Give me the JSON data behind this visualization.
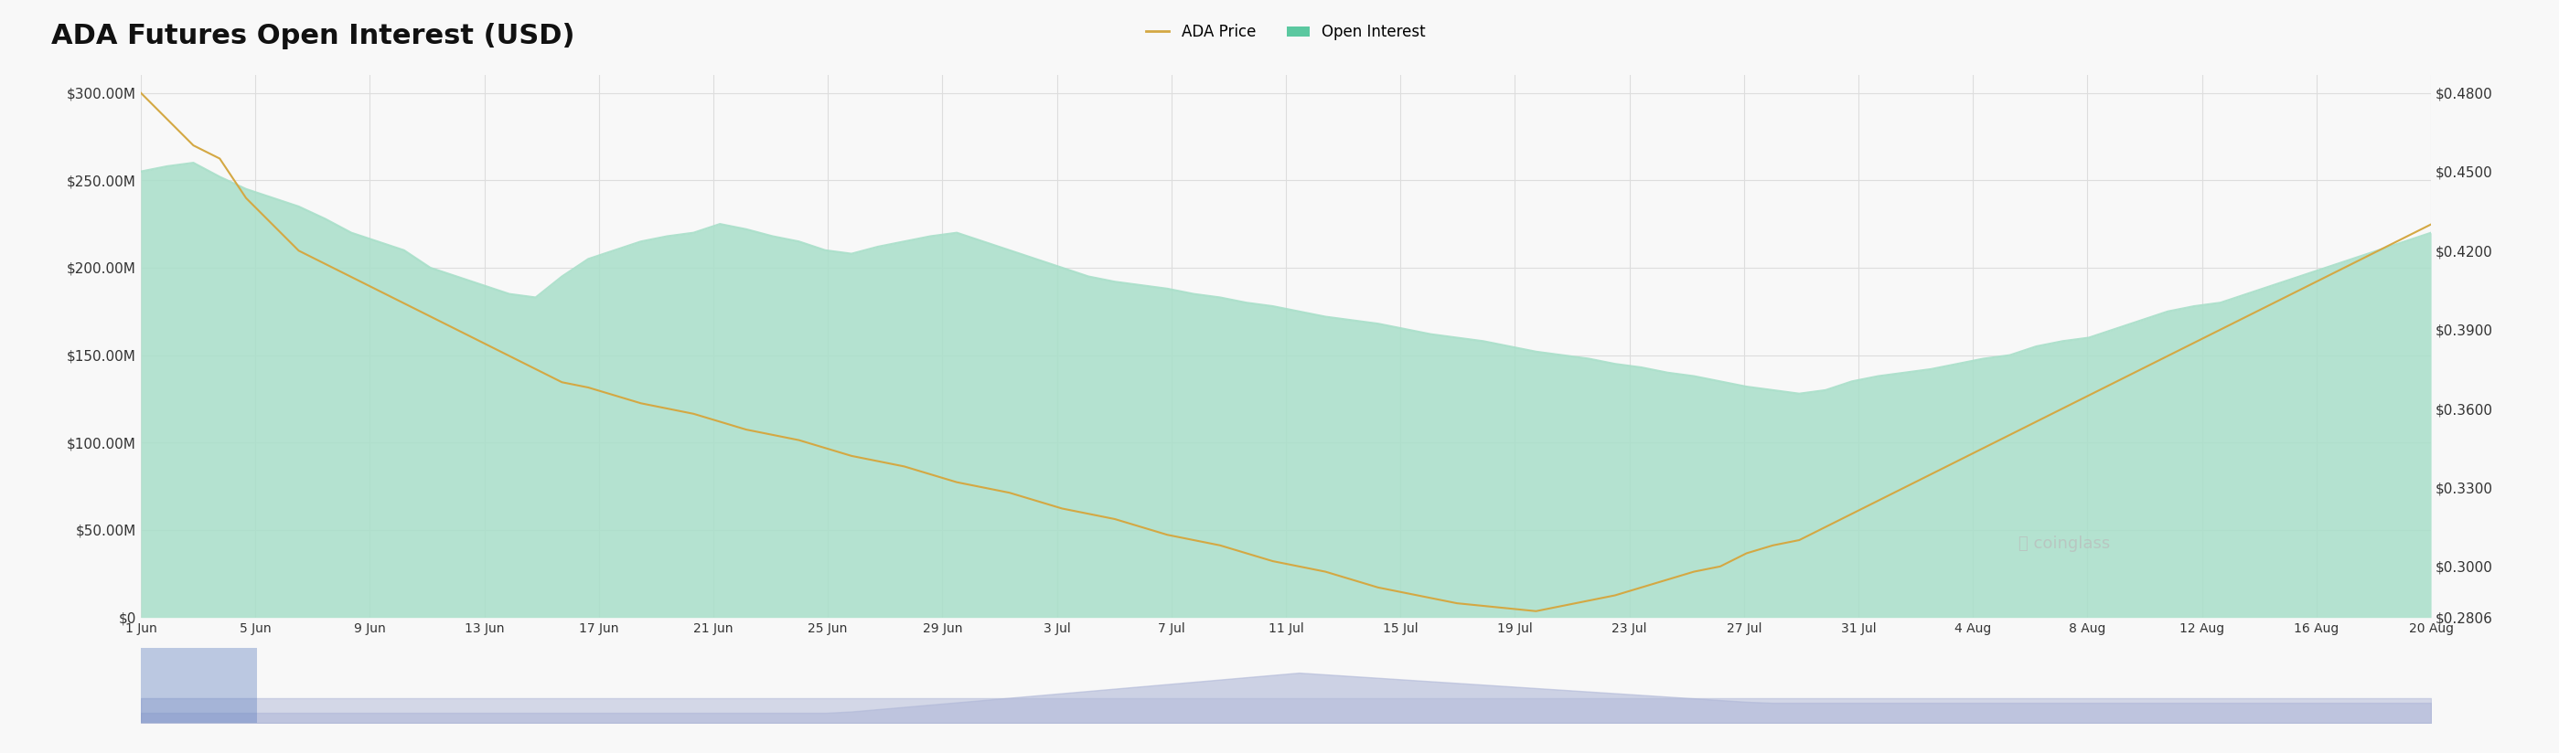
{
  "title": "ADA Futures Open Interest (USD)",
  "background_color": "#f8f8f8",
  "legend_labels": [
    "ADA Price",
    "Open Interest"
  ],
  "legend_colors": [
    "#d4a843",
    "#5bc8a0"
  ],
  "left_yticks": [
    0,
    50,
    100,
    150,
    200,
    250,
    300
  ],
  "left_yticklabels": [
    "$0",
    "$50.00M",
    "$100.00M",
    "$150.00M",
    "$200.00M",
    "$250.00M",
    "$300.00M"
  ],
  "right_yticks": [
    0.2806,
    0.3,
    0.33,
    0.36,
    0.39,
    0.42,
    0.45,
    0.48
  ],
  "right_yticklabels": [
    "$0.2806",
    "$0.3000",
    "$0.3300",
    "$0.3600",
    "$0.3900",
    "$0.4200",
    "$0.4500",
    "$0.4800"
  ],
  "xtick_labels": [
    "1 Jun",
    "5 Jun",
    "9 Jun",
    "13 Jun",
    "17 Jun",
    "21 Jun",
    "25 Jun",
    "29 Jun",
    "3 Jul",
    "7 Jul",
    "11 Jul",
    "15 Jul",
    "19 Jul",
    "23 Jul",
    "27 Jul",
    "31 Jul",
    "4 Aug",
    "8 Aug",
    "12 Aug",
    "16 Aug",
    "20 Aug"
  ],
  "open_interest": [
    255,
    258,
    260,
    252,
    245,
    240,
    235,
    228,
    220,
    215,
    210,
    200,
    195,
    190,
    185,
    183,
    195,
    205,
    210,
    215,
    218,
    220,
    225,
    222,
    218,
    215,
    210,
    208,
    212,
    215,
    218,
    220,
    215,
    210,
    205,
    200,
    195,
    192,
    190,
    188,
    185,
    183,
    180,
    178,
    175,
    172,
    170,
    168,
    165,
    162,
    160,
    158,
    155,
    152,
    150,
    148,
    145,
    143,
    140,
    138,
    135,
    132,
    130,
    128,
    130,
    135,
    138,
    140,
    142,
    145,
    148,
    150,
    155,
    158,
    160,
    165,
    170,
    175,
    178,
    180,
    185,
    190,
    195,
    200,
    205,
    210,
    215,
    220
  ],
  "ada_price": [
    0.48,
    0.47,
    0.46,
    0.455,
    0.44,
    0.43,
    0.42,
    0.415,
    0.41,
    0.405,
    0.4,
    0.395,
    0.39,
    0.385,
    0.38,
    0.375,
    0.37,
    0.368,
    0.365,
    0.362,
    0.36,
    0.358,
    0.355,
    0.352,
    0.35,
    0.348,
    0.345,
    0.342,
    0.34,
    0.338,
    0.335,
    0.332,
    0.33,
    0.328,
    0.325,
    0.322,
    0.32,
    0.318,
    0.315,
    0.312,
    0.31,
    0.308,
    0.305,
    0.302,
    0.3,
    0.298,
    0.295,
    0.292,
    0.29,
    0.288,
    0.286,
    0.285,
    0.284,
    0.283,
    0.285,
    0.287,
    0.289,
    0.292,
    0.295,
    0.298,
    0.3,
    0.305,
    0.308,
    0.31,
    0.315,
    0.32,
    0.325,
    0.33,
    0.335,
    0.34,
    0.345,
    0.35,
    0.355,
    0.36,
    0.365,
    0.37,
    0.375,
    0.38,
    0.385,
    0.39,
    0.395,
    0.4,
    0.405,
    0.41,
    0.415,
    0.42,
    0.425,
    0.43
  ],
  "oi_color_top": "#a8dfc9",
  "oi_color_bottom": "#e8f8f2",
  "price_line_color": "#d4a843",
  "grid_color": "#dddddd",
  "mini_color": "#b0b8d8",
  "watermark_text": "coinglass"
}
